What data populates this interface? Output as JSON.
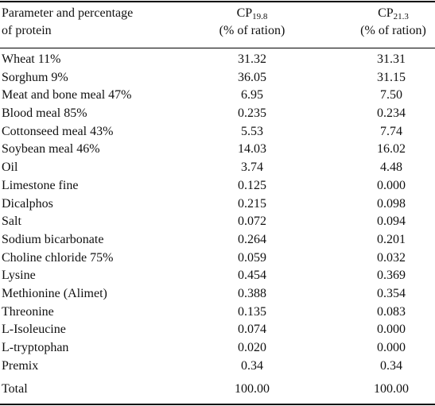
{
  "header": {
    "param_line1": "Parameter and percentage",
    "param_line2": "of protein",
    "col1_base": "CP",
    "col1_sub": "19.8",
    "col1_unit": "(% of ration)",
    "col2_base": "CP",
    "col2_sub": "21.3",
    "col2_unit": "(% of ration)"
  },
  "rows": [
    {
      "name": "Wheat 11%",
      "v1": "31.32",
      "v2": "31.31"
    },
    {
      "name": "Sorghum 9%",
      "v1": "36.05",
      "v2": "31.15"
    },
    {
      "name": "Meat and bone meal 47%",
      "v1": "6.95",
      "v2": "7.50"
    },
    {
      "name": "Blood meal 85%",
      "v1": "0.235",
      "v2": "0.234"
    },
    {
      "name": "Cottonseed meal 43%",
      "v1": "5.53",
      "v2": "7.74"
    },
    {
      "name": "Soybean meal 46%",
      "v1": "14.03",
      "v2": "16.02"
    },
    {
      "name": "Oil",
      "v1": "3.74",
      "v2": "4.48"
    },
    {
      "name": "Limestone fine",
      "v1": "0.125",
      "v2": "0.000"
    },
    {
      "name": "Dicalphos",
      "v1": "0.215",
      "v2": "0.098"
    },
    {
      "name": "Salt",
      "v1": "0.072",
      "v2": "0.094"
    },
    {
      "name": "Sodium bicarbonate",
      "v1": "0.264",
      "v2": "0.201"
    },
    {
      "name": "Choline chloride 75%",
      "v1": "0.059",
      "v2": "0.032"
    },
    {
      "name": "Lysine",
      "v1": "0.454",
      "v2": "0.369"
    },
    {
      "name": "Methionine (Alimet)",
      "v1": "0.388",
      "v2": "0.354"
    },
    {
      "name": "Threonine",
      "v1": "0.135",
      "v2": "0.083"
    },
    {
      "name": "L-Isoleucine",
      "v1": "0.074",
      "v2": "0.000"
    },
    {
      "name": "L-tryptophan",
      "v1": "0.020",
      "v2": "0.000"
    },
    {
      "name": "Premix",
      "v1": "0.34",
      "v2": "0.34"
    }
  ],
  "total": {
    "name": "Total",
    "v1": "100.00",
    "v2": "100.00"
  }
}
